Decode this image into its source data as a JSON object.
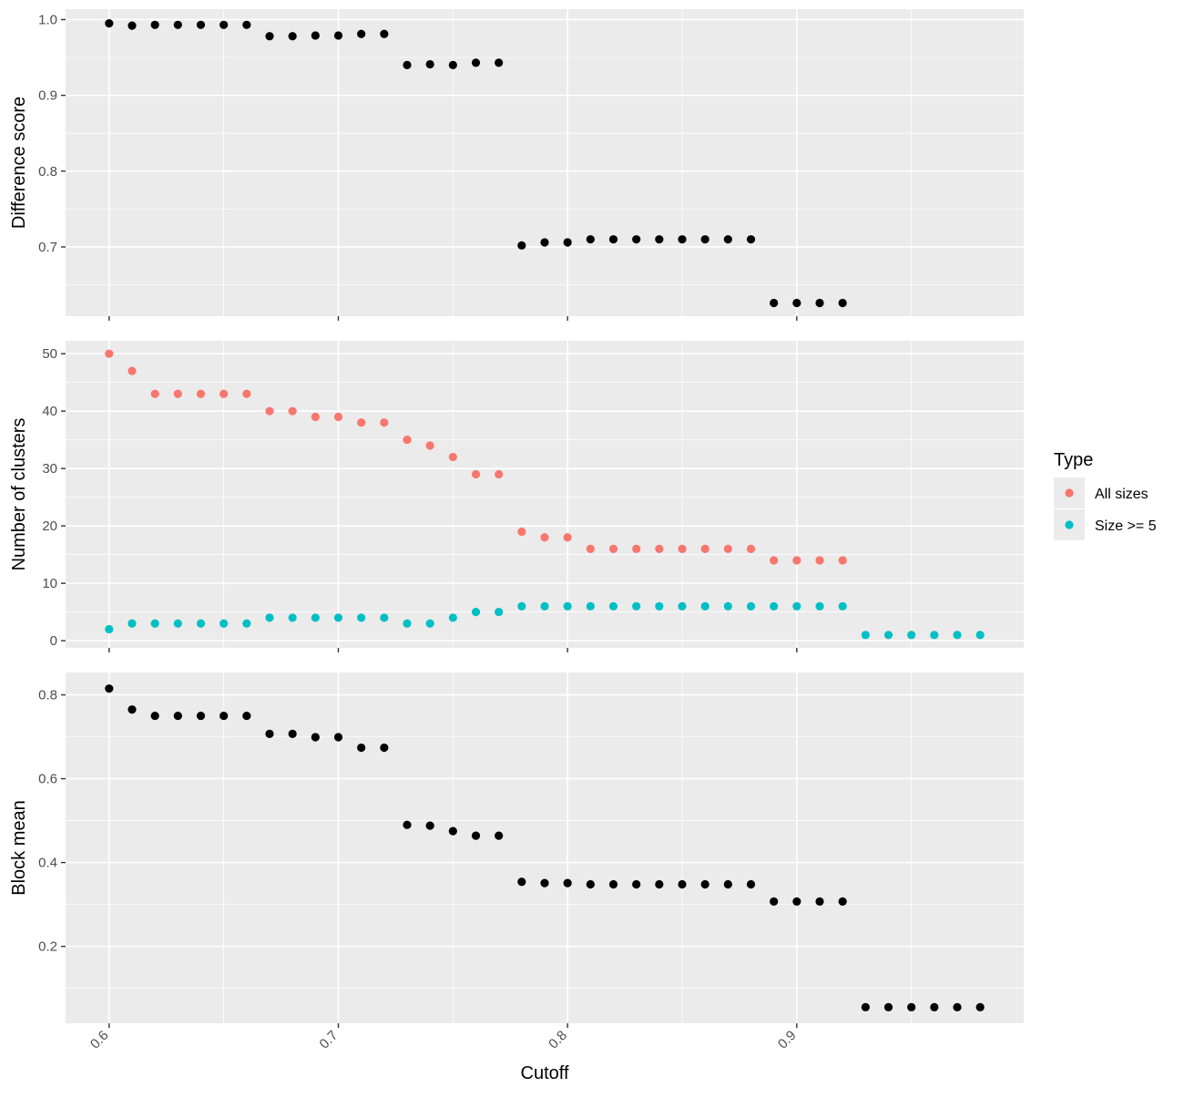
{
  "chart_data": {
    "type": "scatter",
    "xlabel": "Cutoff",
    "x_ticks": [
      "0.6",
      "0.7",
      "0.8",
      "0.9"
    ],
    "x_tick_values": [
      0.6,
      0.7,
      0.8,
      0.9
    ],
    "xlim": [
      0.581,
      0.999
    ],
    "colors": {
      "panel_bg": "#EBEBEB",
      "grid": "#FFFFFF",
      "point_default": "#000000",
      "all_sizes": "#F8766D",
      "size_ge_5": "#00BFC4"
    },
    "legend": {
      "title": "Type",
      "position": "right",
      "entries": [
        {
          "label": "All sizes",
          "color": "#F8766D"
        },
        {
          "label": "Size >= 5",
          "color": "#00BFC4"
        }
      ]
    },
    "panels": [
      {
        "ylabel": "Difference score",
        "ylim": [
          0.6086,
          1.0138
        ],
        "y_ticks": [
          "0.7",
          "0.8",
          "0.9",
          "1.0"
        ],
        "y_tick_values": [
          0.7,
          0.8,
          0.9,
          1.0
        ],
        "series": [
          {
            "color": "#000000",
            "x": [
              0.6,
              0.61,
              0.62,
              0.63,
              0.64,
              0.65,
              0.66,
              0.67,
              0.68,
              0.69,
              0.7,
              0.71,
              0.72,
              0.73,
              0.74,
              0.75,
              0.76,
              0.77,
              0.78,
              0.79,
              0.8,
              0.81,
              0.82,
              0.83,
              0.84,
              0.85,
              0.86,
              0.87,
              0.88,
              0.89,
              0.9,
              0.91,
              0.92
            ],
            "y": [
              0.995,
              0.992,
              0.993,
              0.993,
              0.993,
              0.993,
              0.993,
              0.978,
              0.978,
              0.979,
              0.979,
              0.981,
              0.981,
              0.94,
              0.941,
              0.94,
              0.943,
              0.943,
              0.702,
              0.706,
              0.706,
              0.71,
              0.71,
              0.71,
              0.71,
              0.71,
              0.71,
              0.71,
              0.71,
              0.626,
              0.626,
              0.626,
              0.626
            ]
          }
        ]
      },
      {
        "ylabel": "Number of clusters",
        "ylim": [
          -1.25,
          52.25
        ],
        "y_ticks": [
          "0",
          "10",
          "20",
          "30",
          "40",
          "50"
        ],
        "y_tick_values": [
          0,
          10,
          20,
          30,
          40,
          50
        ],
        "series": [
          {
            "name": "All sizes",
            "color": "#F8766D",
            "x": [
              0.6,
              0.61,
              0.62,
              0.63,
              0.64,
              0.65,
              0.66,
              0.67,
              0.68,
              0.69,
              0.7,
              0.71,
              0.72,
              0.73,
              0.74,
              0.75,
              0.76,
              0.77,
              0.78,
              0.79,
              0.8,
              0.81,
              0.82,
              0.83,
              0.84,
              0.85,
              0.86,
              0.87,
              0.88,
              0.89,
              0.9,
              0.91,
              0.92
            ],
            "y": [
              50,
              47,
              43,
              43,
              43,
              43,
              43,
              40,
              40,
              39,
              39,
              38,
              38,
              35,
              34,
              32,
              29,
              29,
              19,
              18,
              18,
              16,
              16,
              16,
              16,
              16,
              16,
              16,
              16,
              14,
              14,
              14,
              14
            ]
          },
          {
            "name": "Size >= 5",
            "color": "#00BFC4",
            "x": [
              0.6,
              0.61,
              0.62,
              0.63,
              0.64,
              0.65,
              0.66,
              0.67,
              0.68,
              0.69,
              0.7,
              0.71,
              0.72,
              0.73,
              0.74,
              0.75,
              0.76,
              0.77,
              0.78,
              0.79,
              0.8,
              0.81,
              0.82,
              0.83,
              0.84,
              0.85,
              0.86,
              0.87,
              0.88,
              0.89,
              0.9,
              0.91,
              0.92,
              0.93,
              0.94,
              0.95,
              0.96,
              0.97,
              0.98
            ],
            "y": [
              2,
              3,
              3,
              3,
              3,
              3,
              3,
              4,
              4,
              4,
              4,
              4,
              4,
              3,
              3,
              4,
              5,
              5,
              6,
              6,
              6,
              6,
              6,
              6,
              6,
              6,
              6,
              6,
              6,
              6,
              6,
              6,
              6,
              1,
              1,
              1,
              1,
              1,
              1
            ]
          }
        ]
      },
      {
        "ylabel": "Block mean",
        "ylim": [
          0.0166,
          0.8534
        ],
        "y_ticks": [
          "0.2",
          "0.4",
          "0.6",
          "0.8"
        ],
        "y_tick_values": [
          0.2,
          0.4,
          0.6,
          0.8
        ],
        "series": [
          {
            "color": "#000000",
            "x": [
              0.6,
              0.61,
              0.62,
              0.63,
              0.64,
              0.65,
              0.66,
              0.67,
              0.68,
              0.69,
              0.7,
              0.71,
              0.72,
              0.73,
              0.74,
              0.75,
              0.76,
              0.77,
              0.78,
              0.79,
              0.8,
              0.81,
              0.82,
              0.83,
              0.84,
              0.85,
              0.86,
              0.87,
              0.88,
              0.89,
              0.9,
              0.91,
              0.92,
              0.93,
              0.94,
              0.95,
              0.96,
              0.97,
              0.98
            ],
            "y": [
              0.815,
              0.765,
              0.75,
              0.75,
              0.75,
              0.75,
              0.75,
              0.707,
              0.707,
              0.699,
              0.699,
              0.674,
              0.674,
              0.49,
              0.488,
              0.475,
              0.464,
              0.464,
              0.354,
              0.351,
              0.351,
              0.348,
              0.348,
              0.348,
              0.348,
              0.348,
              0.348,
              0.348,
              0.348,
              0.307,
              0.307,
              0.307,
              0.307,
              0.055,
              0.055,
              0.055,
              0.055,
              0.055,
              0.055
            ]
          }
        ]
      }
    ]
  }
}
